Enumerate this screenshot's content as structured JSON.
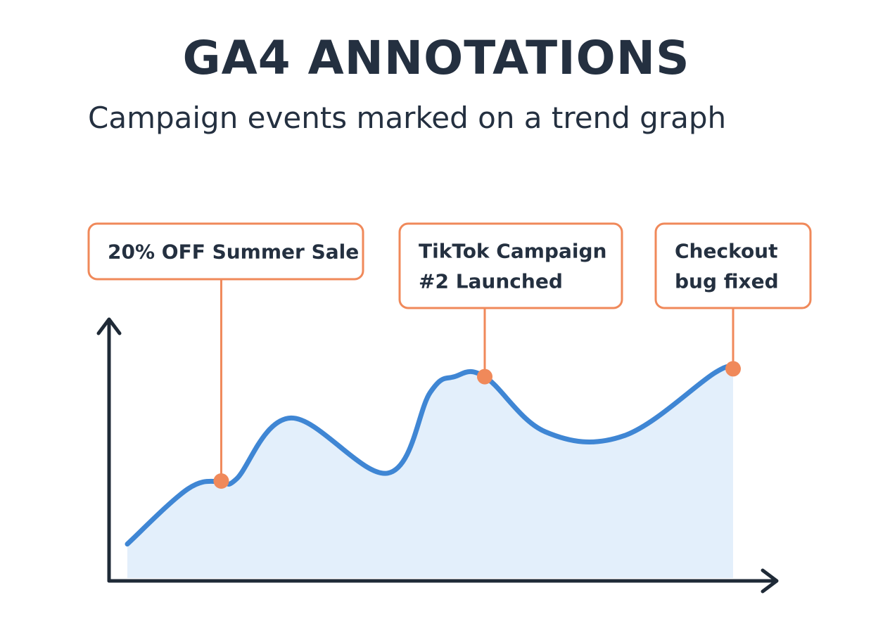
{
  "title": "GA4 ANNOTATIONS",
  "subtitle": "Campaign events marked on a trend graph",
  "colors": {
    "text": "#243040",
    "axis": "#1f2a37",
    "line": "#3f86d4",
    "area": "#e3effb",
    "annotation": "#f0895a",
    "annotation_fill": "#ffffff"
  },
  "chart_data": {
    "type": "area",
    "xlabel": "",
    "ylabel": "",
    "xlim": [
      0,
      100
    ],
    "ylim": [
      0,
      100
    ],
    "grid": false,
    "series": [
      {
        "x": [
          0,
          10,
          15.5,
          18,
          27,
          43,
          50,
          54,
          59,
          69,
          82,
          97,
          100
        ],
        "values": [
          8,
          36,
          40,
          41,
          72,
          44,
          85,
          93,
          93,
          65,
          63,
          95,
          97
        ]
      }
    ],
    "annotations": [
      {
        "label": [
          "20% OFF Summer Sale"
        ],
        "x": 15.5,
        "y": 40
      },
      {
        "label": [
          "TikTok Campaign",
          "#2 Launched"
        ],
        "x": 59,
        "y": 93
      },
      {
        "label": [
          "Checkout",
          "bug fixed"
        ],
        "x": 100,
        "y": 97
      }
    ]
  }
}
